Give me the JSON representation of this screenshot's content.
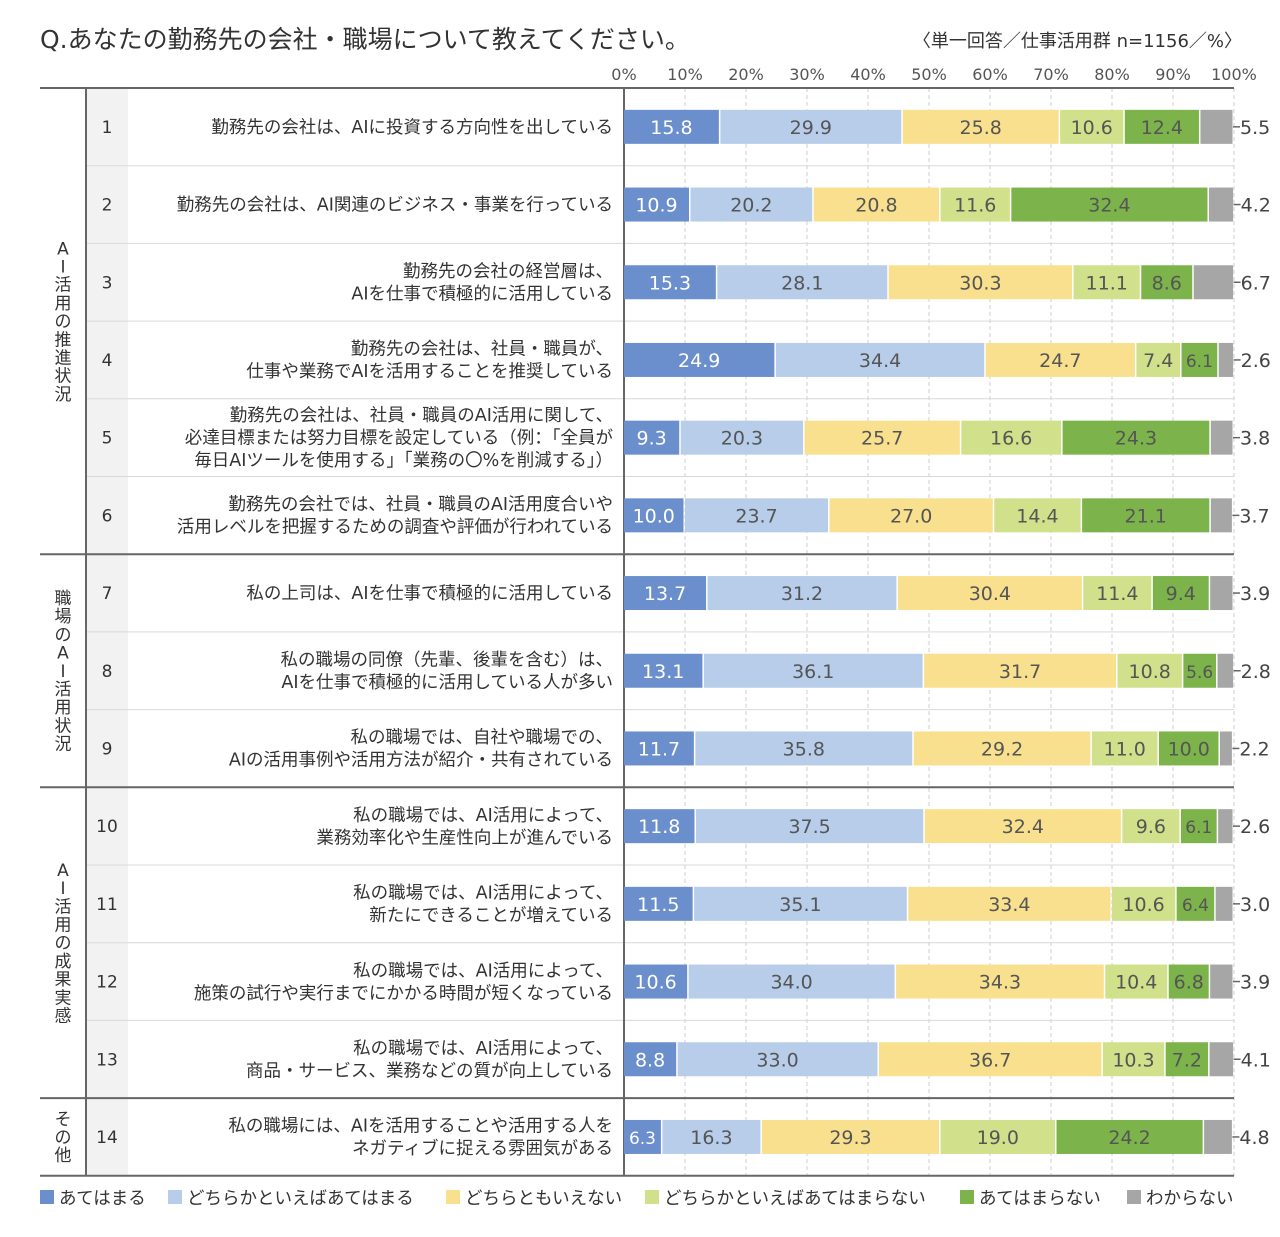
{
  "chart_data": {
    "type": "bar",
    "stacked": true,
    "orientation": "horizontal",
    "title": "Q.あなたの勤務先の会社・職場について教えてください。",
    "note": "〈単一回答／仕事活用群 n=1156／%〉",
    "xlim": [
      0,
      100
    ],
    "xticks": [
      "0%",
      "10%",
      "20%",
      "30%",
      "40%",
      "50%",
      "60%",
      "70%",
      "80%",
      "90%",
      "100%"
    ],
    "grid": true,
    "legend_position": "bottom",
    "groups": [
      {
        "label": "AI活用の推進状況",
        "rows": [
          1,
          2,
          3,
          4,
          5,
          6
        ]
      },
      {
        "label": "職場のAI活用状況",
        "rows": [
          7,
          8,
          9
        ]
      },
      {
        "label": "AI活用の成果実感",
        "rows": [
          10,
          11,
          12,
          13
        ]
      },
      {
        "label": "その他",
        "rows": [
          14
        ]
      }
    ],
    "series": [
      {
        "name": "あてはまる",
        "color": "#6b8fcd"
      },
      {
        "name": "どちらかといえばあてはまる",
        "color": "#b7cde9"
      },
      {
        "name": "どちらともいえない",
        "color": "#f8e08f"
      },
      {
        "name": "どちらかといえばあてはまらない",
        "color": "#d1e08a"
      },
      {
        "name": "あてはまらない",
        "color": "#7cb34b"
      },
      {
        "name": "わからない",
        "color": "#a6a6a6"
      }
    ],
    "rows": [
      {
        "num": "1",
        "label": [
          "勤務先の会社は、AIに投資する方向性を出している"
        ],
        "values": [
          15.8,
          29.9,
          25.8,
          10.6,
          12.4,
          5.5
        ],
        "display": [
          "15.8",
          "29.9",
          "25.8",
          "10.6",
          "12.4",
          "5.5"
        ]
      },
      {
        "num": "2",
        "label": [
          "勤務先の会社は、AI関連のビジネス・事業を行っている"
        ],
        "values": [
          10.9,
          20.2,
          20.8,
          11.6,
          32.4,
          4.2
        ],
        "display": [
          "10.9",
          "20.2",
          "20.8",
          "11.6",
          "32.4",
          "4.2"
        ]
      },
      {
        "num": "3",
        "label": [
          "勤務先の会社の経営層は、",
          "AIを仕事で積極的に活用している"
        ],
        "values": [
          15.3,
          28.1,
          30.3,
          11.1,
          8.6,
          6.7
        ],
        "display": [
          "15.3",
          "28.1",
          "30.3",
          "11.1",
          "8.6",
          "6.7"
        ]
      },
      {
        "num": "4",
        "label": [
          "勤務先の会社は、社員・職員が、",
          "仕事や業務でAIを活用することを推奨している"
        ],
        "values": [
          24.9,
          34.4,
          24.7,
          7.4,
          6.1,
          2.6
        ],
        "display": [
          "24.9",
          "34.4",
          "24.7",
          "7.4",
          "6.1",
          "2.6"
        ]
      },
      {
        "num": "5",
        "label": [
          "勤務先の会社は、社員・職員のAI活用に関して、",
          "必達目標または努力目標を設定している（例：「全員が",
          "毎日AIツールを使用する」「業務の〇%を削減する」）"
        ],
        "values": [
          9.3,
          20.3,
          25.7,
          16.6,
          24.3,
          3.8
        ],
        "display": [
          "9.3",
          "20.3",
          "25.7",
          "16.6",
          "24.3",
          "3.8"
        ]
      },
      {
        "num": "6",
        "label": [
          "勤務先の会社では、社員・職員のAI活用度合いや",
          "活用レベルを把握するための調査や評価が行われている"
        ],
        "values": [
          10.0,
          23.7,
          27.0,
          14.4,
          21.1,
          3.7
        ],
        "display": [
          "10.0",
          "23.7",
          "27.0",
          "14.4",
          "21.1",
          "3.7"
        ]
      },
      {
        "num": "7",
        "label": [
          "私の上司は、AIを仕事で積極的に活用している"
        ],
        "values": [
          13.7,
          31.2,
          30.4,
          11.4,
          9.4,
          3.9
        ],
        "display": [
          "13.7",
          "31.2",
          "30.4",
          "11.4",
          "9.4",
          "3.9"
        ]
      },
      {
        "num": "8",
        "label": [
          "私の職場の同僚（先輩、後輩を含む）は、",
          "AIを仕事で積極的に活用している人が多い"
        ],
        "values": [
          13.1,
          36.1,
          31.7,
          10.8,
          5.6,
          2.8
        ],
        "display": [
          "13.1",
          "36.1",
          "31.7",
          "10.8",
          "5.6",
          "2.8"
        ]
      },
      {
        "num": "9",
        "label": [
          "私の職場では、自社や職場での、",
          "AIの活用事例や活用方法が紹介・共有されている"
        ],
        "values": [
          11.7,
          35.8,
          29.2,
          11.0,
          10.0,
          2.2
        ],
        "display": [
          "11.7",
          "35.8",
          "29.2",
          "11.0",
          "10.0",
          "2.2"
        ]
      },
      {
        "num": "10",
        "label": [
          "私の職場では、AI活用によって、",
          "業務効率化や生産性向上が進んでいる"
        ],
        "values": [
          11.8,
          37.5,
          32.4,
          9.6,
          6.1,
          2.6
        ],
        "display": [
          "11.8",
          "37.5",
          "32.4",
          "9.6",
          "6.1",
          "2.6"
        ]
      },
      {
        "num": "11",
        "label": [
          "私の職場では、AI活用によって、",
          "新たにできることが増えている"
        ],
        "values": [
          11.5,
          35.1,
          33.4,
          10.6,
          6.4,
          3.0
        ],
        "display": [
          "11.5",
          "35.1",
          "33.4",
          "10.6",
          "6.4",
          "3.0"
        ]
      },
      {
        "num": "12",
        "label": [
          "私の職場では、AI活用によって、",
          "施策の試行や実行までにかかる時間が短くなっている"
        ],
        "values": [
          10.6,
          34.0,
          34.3,
          10.4,
          6.8,
          3.9
        ],
        "display": [
          "10.6",
          "34.0",
          "34.3",
          "10.4",
          "6.8",
          "3.9"
        ]
      },
      {
        "num": "13",
        "label": [
          "私の職場では、AI活用によって、",
          "商品・サービス、業務などの質が向上している"
        ],
        "values": [
          8.8,
          33.0,
          36.7,
          10.3,
          7.2,
          4.1
        ],
        "display": [
          "8.8",
          "33.0",
          "36.7",
          "10.3",
          "7.2",
          "4.1"
        ]
      },
      {
        "num": "14",
        "label": [
          "私の職場には、AIを活用することや活用する人を",
          "ネガティブに捉える雰囲気がある"
        ],
        "values": [
          6.3,
          16.3,
          29.3,
          19.0,
          24.2,
          4.8
        ],
        "display": [
          "6.3",
          "16.3",
          "29.3",
          "19.0",
          "24.2",
          "4.8"
        ]
      }
    ]
  }
}
